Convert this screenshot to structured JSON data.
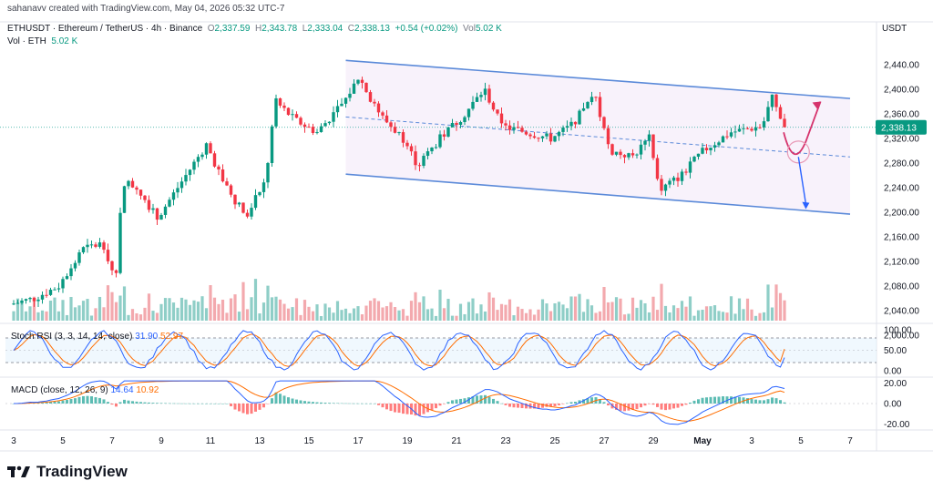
{
  "header": {
    "created_by": "sahanavv created with TradingView.com, May 04, 2026 05:32 UTC-7"
  },
  "legend": {
    "symbol": "ETHUSDT · Ethereum / TetherUS · 4h · Binance",
    "open_label": "O",
    "open": "2,337.59",
    "high_label": "H",
    "high": "2,343.78",
    "low_label": "L",
    "low": "2,333.04",
    "close_label": "C",
    "close": "2,338.13",
    "change": "+0.54 (+0.02%)",
    "vol_label": "Vol",
    "vol": "5.02 K",
    "vol2_label": "Vol · ETH",
    "vol2": "5.02 K"
  },
  "axis_title": "USDT",
  "price_tag": "2,338.13",
  "rsi": {
    "label": "Stoch RSI (3, 3, 14, 14, close)",
    "k": "31.90",
    "d": "52.97"
  },
  "macd": {
    "label": "MACD (close, 12, 26, 9)",
    "macd": "14.64",
    "signal": "10.92"
  },
  "footer": {
    "brand": "TradingView"
  },
  "colors": {
    "up": "#089981",
    "down": "#f23645",
    "up_vol": "#8fcec7",
    "down_vol": "#f3a9ae",
    "channel": "#5b8ad9",
    "arrow_up": "#d6336c",
    "arrow_down": "#2962ff"
  },
  "chart_data": [
    {
      "type": "candlestick",
      "title": "",
      "ylabel": "USDT",
      "ylim": [
        1980,
        2460
      ],
      "y_ticks": [
        "2,440.00",
        "2,400.00",
        "2,360.00",
        "2,320.00",
        "2,280.00",
        "2,240.00",
        "2,200.00",
        "2,160.00",
        "2,120.00",
        "2,080.00",
        "2,040.00",
        "2,000.00"
      ],
      "x_ticks": [
        "3",
        "5",
        "7",
        "9",
        "11",
        "13",
        "15",
        "17",
        "19",
        "21",
        "23",
        "25",
        "27",
        "29",
        "May",
        "3",
        "5",
        "7"
      ],
      "last_price": 2338.13,
      "price_anchors": [
        {
          "day": 3.0,
          "price": 2050
        },
        {
          "day": 4.0,
          "price": 2060
        },
        {
          "day": 5.0,
          "price": 2080
        },
        {
          "day": 6.0,
          "price": 2140
        },
        {
          "day": 6.8,
          "price": 2150
        },
        {
          "day": 7.3,
          "price": 2090
        },
        {
          "day": 7.6,
          "price": 2250
        },
        {
          "day": 8.2,
          "price": 2240
        },
        {
          "day": 9.0,
          "price": 2190
        },
        {
          "day": 10.0,
          "price": 2250
        },
        {
          "day": 11.0,
          "price": 2310
        },
        {
          "day": 11.8,
          "price": 2240
        },
        {
          "day": 12.6,
          "price": 2195
        },
        {
          "day": 13.4,
          "price": 2250
        },
        {
          "day": 13.8,
          "price": 2380
        },
        {
          "day": 14.6,
          "price": 2350
        },
        {
          "day": 15.5,
          "price": 2330
        },
        {
          "day": 16.6,
          "price": 2380
        },
        {
          "day": 17.2,
          "price": 2420
        },
        {
          "day": 18.0,
          "price": 2360
        },
        {
          "day": 19.0,
          "price": 2320
        },
        {
          "day": 19.6,
          "price": 2275
        },
        {
          "day": 20.5,
          "price": 2320
        },
        {
          "day": 21.5,
          "price": 2360
        },
        {
          "day": 22.3,
          "price": 2400
        },
        {
          "day": 23.0,
          "price": 2340
        },
        {
          "day": 24.0,
          "price": 2330
        },
        {
          "day": 25.0,
          "price": 2320
        },
        {
          "day": 25.8,
          "price": 2340
        },
        {
          "day": 26.8,
          "price": 2390
        },
        {
          "day": 27.4,
          "price": 2300
        },
        {
          "day": 28.3,
          "price": 2290
        },
        {
          "day": 29.0,
          "price": 2320
        },
        {
          "day": 29.4,
          "price": 2235
        },
        {
          "day": 30.3,
          "price": 2260
        },
        {
          "day": 31.2,
          "price": 2300
        },
        {
          "day": 32.3,
          "price": 2330
        },
        {
          "day": 33.6,
          "price": 2340
        },
        {
          "day": 34.0,
          "price": 2390
        },
        {
          "day": 34.4,
          "price": 2338
        }
      ],
      "channel": {
        "upper": [
          {
            "day": 16.5,
            "price": 2447
          },
          {
            "day": 37.0,
            "price": 2385
          }
        ],
        "lower": [
          {
            "day": 16.5,
            "price": 2262
          },
          {
            "day": 37.0,
            "price": 2197
          }
        ],
        "mid": [
          {
            "day": 16.5,
            "price": 2355
          },
          {
            "day": 37.0,
            "price": 2290
          }
        ]
      },
      "projection": {
        "up": [
          {
            "day": 34.3,
            "price": 2330
          },
          {
            "day": 34.7,
            "price": 2300
          },
          {
            "day": 35.2,
            "price": 2315
          },
          {
            "day": 35.8,
            "price": 2380
          }
        ],
        "down": [
          {
            "day": 34.9,
            "price": 2290
          },
          {
            "day": 35.2,
            "price": 2205
          }
        ]
      }
    },
    {
      "type": "line",
      "title": "Stoch RSI (3, 3, 14, 14, close)",
      "ylim": [
        0,
        100
      ],
      "y_ticks": [
        "100.00",
        "50.00",
        "0.00"
      ],
      "bands": [
        20,
        80
      ],
      "series": [
        {
          "name": "K",
          "color": "#2962ff",
          "value": 31.9
        },
        {
          "name": "D",
          "color": "#ff6d00",
          "value": 52.97
        }
      ]
    },
    {
      "type": "line",
      "title": "MACD (close, 12, 26, 9)",
      "ylim": [
        -25,
        25
      ],
      "y_ticks": [
        "20.00",
        "0.00",
        "-20.00"
      ],
      "series": [
        {
          "name": "MACD",
          "color": "#2962ff",
          "value": 14.64
        },
        {
          "name": "Signal",
          "color": "#ff6d00",
          "value": 10.92
        }
      ]
    }
  ]
}
